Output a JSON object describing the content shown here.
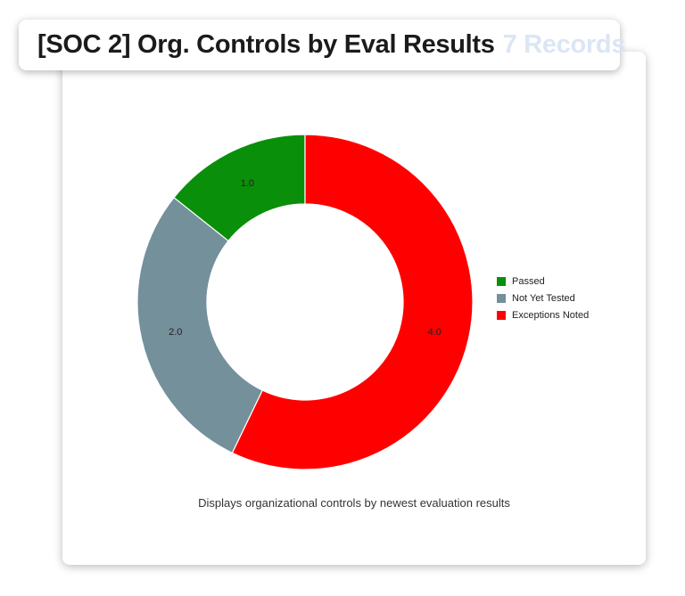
{
  "header": {
    "title": "[SOC 2] Org. Controls by Eval Results",
    "record_count": "7 Records"
  },
  "caption": "Displays organizational controls by newest evaluation results",
  "chart_data": {
    "type": "pie",
    "variant": "donut",
    "categories": [
      "Passed",
      "Not Yet Tested",
      "Exceptions Noted"
    ],
    "values": [
      1.0,
      2.0,
      4.0
    ],
    "value_labels": [
      "1.0",
      "2.0",
      "4.0"
    ],
    "colors": [
      "#0a8f0a",
      "#73909b",
      "#ff0000"
    ],
    "legend_position": "right"
  }
}
